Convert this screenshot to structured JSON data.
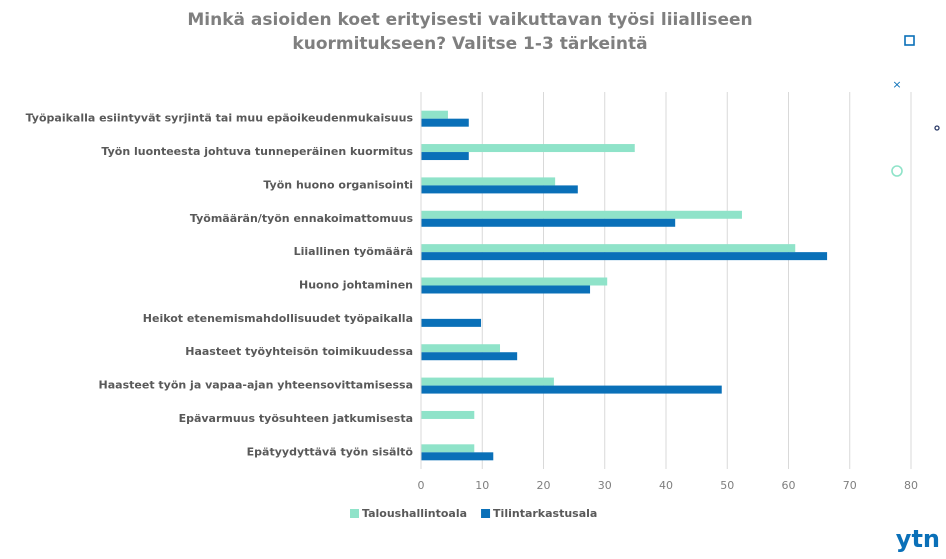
{
  "chart_data": {
    "type": "barh",
    "title": [
      "Minkä asioiden koet erityisesti vaikuttavan työsi liialliseen",
      "kuormitukseen? Valitse 1-3 tärkeintä"
    ],
    "categories": [
      "Työpaikalla esiintyvät syrjintä tai muu epäoikeudenmukaisuus",
      "Työn luonteesta johtuva tunneperäinen kuormitus",
      "Työn huono organisointi",
      "Työmäärän/työn ennakoimattomuus",
      "Liiallinen työmäärä",
      "Huono johtaminen",
      "Heikot etenemismahdollisuudet työpaikalla",
      "Haasteet työyhteisön toimikuudessa",
      "Haasteet työn ja vapaa-ajan yhteensovittamisessa",
      "Epävarmuus työsuhteen jatkumisesta",
      "Epätyydyttävä työn sisältö"
    ],
    "series": [
      {
        "name": "Taloushallintoala",
        "color": "#8fe3c9",
        "values": [
          4.4,
          34.9,
          21.9,
          52.4,
          61.1,
          30.4,
          0,
          12.9,
          21.7,
          8.7,
          8.7
        ]
      },
      {
        "name": "Tilintarkastusala",
        "color": "#0a70b8",
        "values": [
          7.8,
          7.8,
          25.6,
          41.5,
          66.3,
          27.6,
          9.8,
          15.7,
          49.1,
          0,
          11.8
        ]
      }
    ],
    "xlim": [
      0,
      80
    ],
    "xticks": [
      0,
      10,
      20,
      30,
      40,
      50,
      60,
      70,
      80
    ],
    "grid": true,
    "legend": "bottom",
    "logo": "ytn"
  }
}
